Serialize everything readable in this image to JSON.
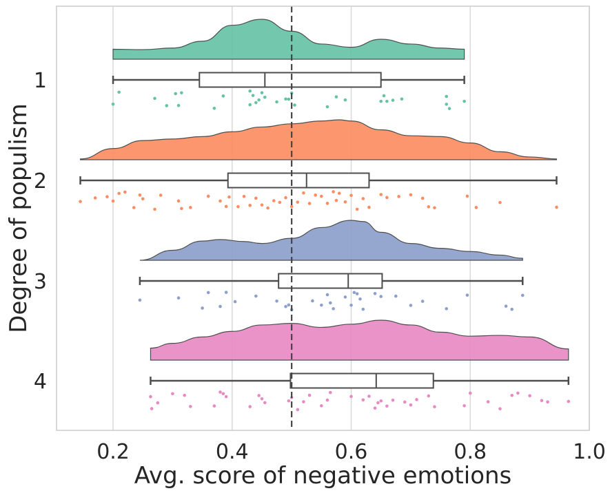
{
  "chart_data": {
    "type": "raincloud",
    "title": "",
    "xlabel": "Avg. score of negative emotions",
    "ylabel": "Degree of populism",
    "xlim": [
      0.105,
      1.0
    ],
    "xticks": [
      0.2,
      0.4,
      0.6,
      0.8,
      1.0
    ],
    "xtick_labels": [
      "0.2",
      "0.4",
      "0.6",
      "0.8",
      "1.0"
    ],
    "grid": "vertical",
    "reference_line": {
      "x": 0.5,
      "style": "dashed"
    },
    "groups": [
      {
        "label": "1",
        "color": "#66c2a5",
        "box": {
          "whisker_low": 0.2,
          "q1": 0.345,
          "median": 0.455,
          "q3": 0.65,
          "whisker_high": 0.79
        },
        "density": {
          "x": [
            0.2,
            0.25,
            0.3,
            0.35,
            0.4,
            0.45,
            0.5,
            0.55,
            0.6,
            0.65,
            0.7,
            0.75,
            0.79
          ],
          "y": [
            0.25,
            0.24,
            0.28,
            0.45,
            0.85,
            1.0,
            0.7,
            0.38,
            0.3,
            0.5,
            0.38,
            0.28,
            0.25
          ]
        },
        "points": [
          0.2,
          0.21,
          0.27,
          0.29,
          0.305,
          0.31,
          0.315,
          0.37,
          0.385,
          0.43,
          0.43,
          0.435,
          0.44,
          0.445,
          0.45,
          0.455,
          0.475,
          0.49,
          0.495,
          0.5,
          0.505,
          0.56,
          0.575,
          0.59,
          0.65,
          0.655,
          0.66,
          0.67,
          0.685,
          0.76,
          0.765,
          0.76,
          0.79
        ]
      },
      {
        "label": "2",
        "color": "#fc8d62",
        "box": {
          "whisker_low": 0.145,
          "q1": 0.393,
          "median": 0.525,
          "q3": 0.63,
          "whisker_high": 0.945
        },
        "density": {
          "x": [
            0.145,
            0.2,
            0.25,
            0.3,
            0.35,
            0.4,
            0.45,
            0.5,
            0.55,
            0.58,
            0.6,
            0.65,
            0.7,
            0.75,
            0.8,
            0.85,
            0.9,
            0.945
          ],
          "y": [
            0.02,
            0.28,
            0.48,
            0.52,
            0.58,
            0.7,
            0.82,
            0.9,
            0.97,
            1.0,
            0.97,
            0.75,
            0.6,
            0.58,
            0.42,
            0.2,
            0.07,
            0.02
          ]
        },
        "points": [
          0.145,
          0.17,
          0.19,
          0.2,
          0.21,
          0.22,
          0.235,
          0.245,
          0.25,
          0.27,
          0.28,
          0.31,
          0.315,
          0.33,
          0.36,
          0.38,
          0.39,
          0.395,
          0.41,
          0.42,
          0.43,
          0.44,
          0.45,
          0.46,
          0.47,
          0.48,
          0.49,
          0.5,
          0.51,
          0.52,
          0.53,
          0.54,
          0.55,
          0.56,
          0.57,
          0.575,
          0.58,
          0.59,
          0.6,
          0.61,
          0.62,
          0.63,
          0.65,
          0.66,
          0.68,
          0.7,
          0.72,
          0.73,
          0.74,
          0.795,
          0.81,
          0.85,
          0.945
        ]
      },
      {
        "label": "3",
        "color": "#8da0cb",
        "box": {
          "whisker_low": 0.245,
          "q1": 0.478,
          "median": 0.595,
          "q3": 0.652,
          "whisker_high": 0.888
        },
        "density": {
          "x": [
            0.245,
            0.3,
            0.35,
            0.38,
            0.42,
            0.45,
            0.5,
            0.55,
            0.6,
            0.62,
            0.65,
            0.7,
            0.75,
            0.8,
            0.85,
            0.888
          ],
          "y": [
            0.0,
            0.25,
            0.48,
            0.52,
            0.47,
            0.42,
            0.55,
            0.82,
            1.0,
            0.97,
            0.7,
            0.42,
            0.3,
            0.22,
            0.13,
            0.05
          ]
        },
        "points": [
          0.245,
          0.31,
          0.35,
          0.36,
          0.38,
          0.39,
          0.405,
          0.44,
          0.475,
          0.49,
          0.495,
          0.5,
          0.535,
          0.55,
          0.56,
          0.565,
          0.57,
          0.59,
          0.6,
          0.605,
          0.61,
          0.615,
          0.62,
          0.64,
          0.65,
          0.675,
          0.7,
          0.72,
          0.76,
          0.795,
          0.86,
          0.87,
          0.888
        ]
      },
      {
        "label": "4",
        "color": "#e78ac3",
        "box": {
          "whisker_low": 0.263,
          "q1": 0.498,
          "median": 0.642,
          "q3": 0.738,
          "whisker_high": 0.965
        },
        "density": {
          "x": [
            0.263,
            0.3,
            0.35,
            0.4,
            0.45,
            0.5,
            0.55,
            0.6,
            0.65,
            0.7,
            0.75,
            0.8,
            0.85,
            0.9,
            0.965
          ],
          "y": [
            0.3,
            0.42,
            0.58,
            0.72,
            0.88,
            0.92,
            0.82,
            0.9,
            1.0,
            0.88,
            0.7,
            0.6,
            0.62,
            0.58,
            0.28
          ]
        },
        "points": [
          0.263,
          0.265,
          0.275,
          0.3,
          0.32,
          0.33,
          0.37,
          0.38,
          0.385,
          0.39,
          0.43,
          0.445,
          0.45,
          0.455,
          0.495,
          0.5,
          0.51,
          0.52,
          0.53,
          0.55,
          0.56,
          0.565,
          0.6,
          0.62,
          0.63,
          0.64,
          0.645,
          0.65,
          0.66,
          0.67,
          0.69,
          0.7,
          0.71,
          0.73,
          0.74,
          0.79,
          0.8,
          0.83,
          0.85,
          0.87,
          0.88,
          0.9,
          0.92,
          0.93,
          0.965
        ]
      }
    ]
  }
}
